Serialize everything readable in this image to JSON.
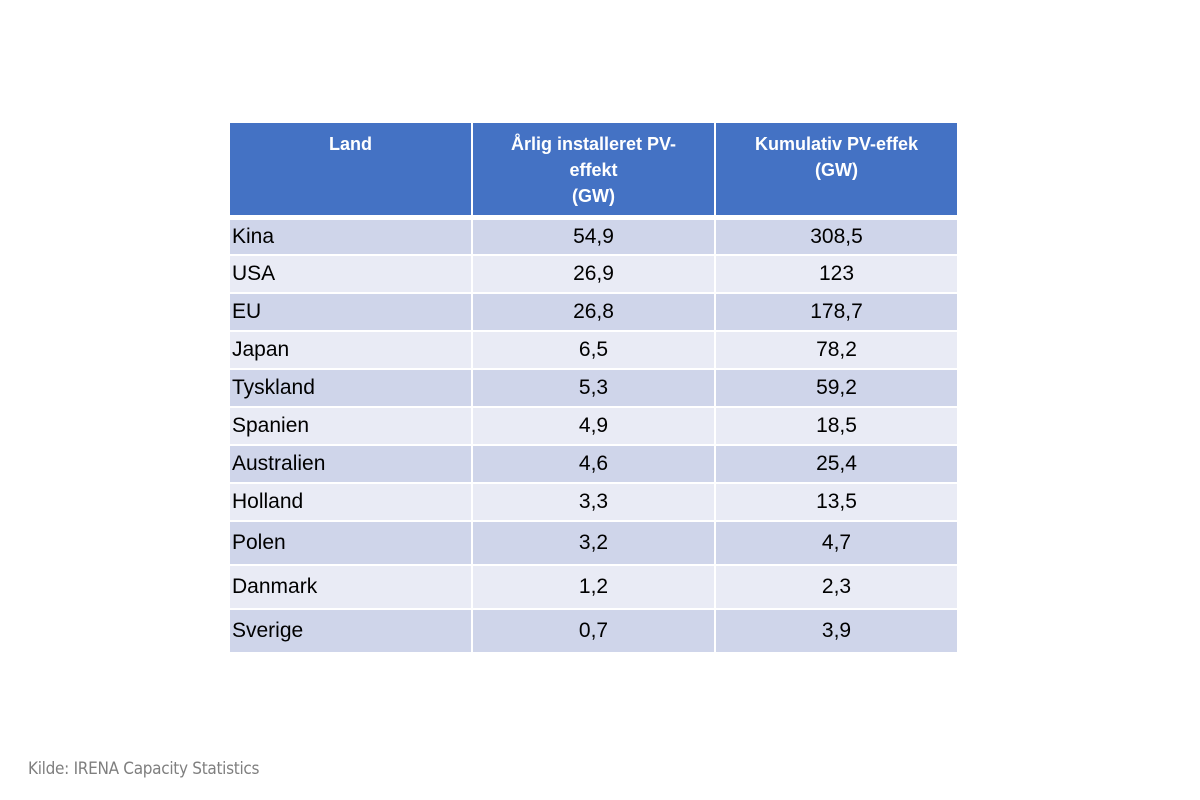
{
  "table": {
    "headers": [
      "Land",
      "Årlig installeret PV-\neffekt\n(GW)",
      "Kumulativ PV-effek\n(GW)"
    ],
    "rows": [
      [
        "Kina",
        "54,9",
        "308,5"
      ],
      [
        "USA",
        "26,9",
        "123"
      ],
      [
        "EU",
        "26,8",
        "178,7"
      ],
      [
        "Japan",
        "6,5",
        "78,2"
      ],
      [
        "Tyskland",
        "5,3",
        "59,2"
      ],
      [
        "Spanien",
        "4,9",
        "18,5"
      ],
      [
        "Australien",
        "4,6",
        "25,4"
      ],
      [
        "Holland",
        "3,3",
        "13,5"
      ],
      [
        "Polen",
        "3,2",
        "4,7"
      ],
      [
        "Danmark",
        "1,2",
        "2,3"
      ],
      [
        "Sverige",
        "0,7",
        "3,9"
      ]
    ]
  },
  "source": "Kilde: IRENA Capacity Statistics",
  "colors": {
    "header_bg": "#4472c4",
    "header_text": "#ffffff",
    "row_dark": "#cfd5ea",
    "row_light": "#e9ebf5",
    "source_text": "#7f7f7f"
  }
}
